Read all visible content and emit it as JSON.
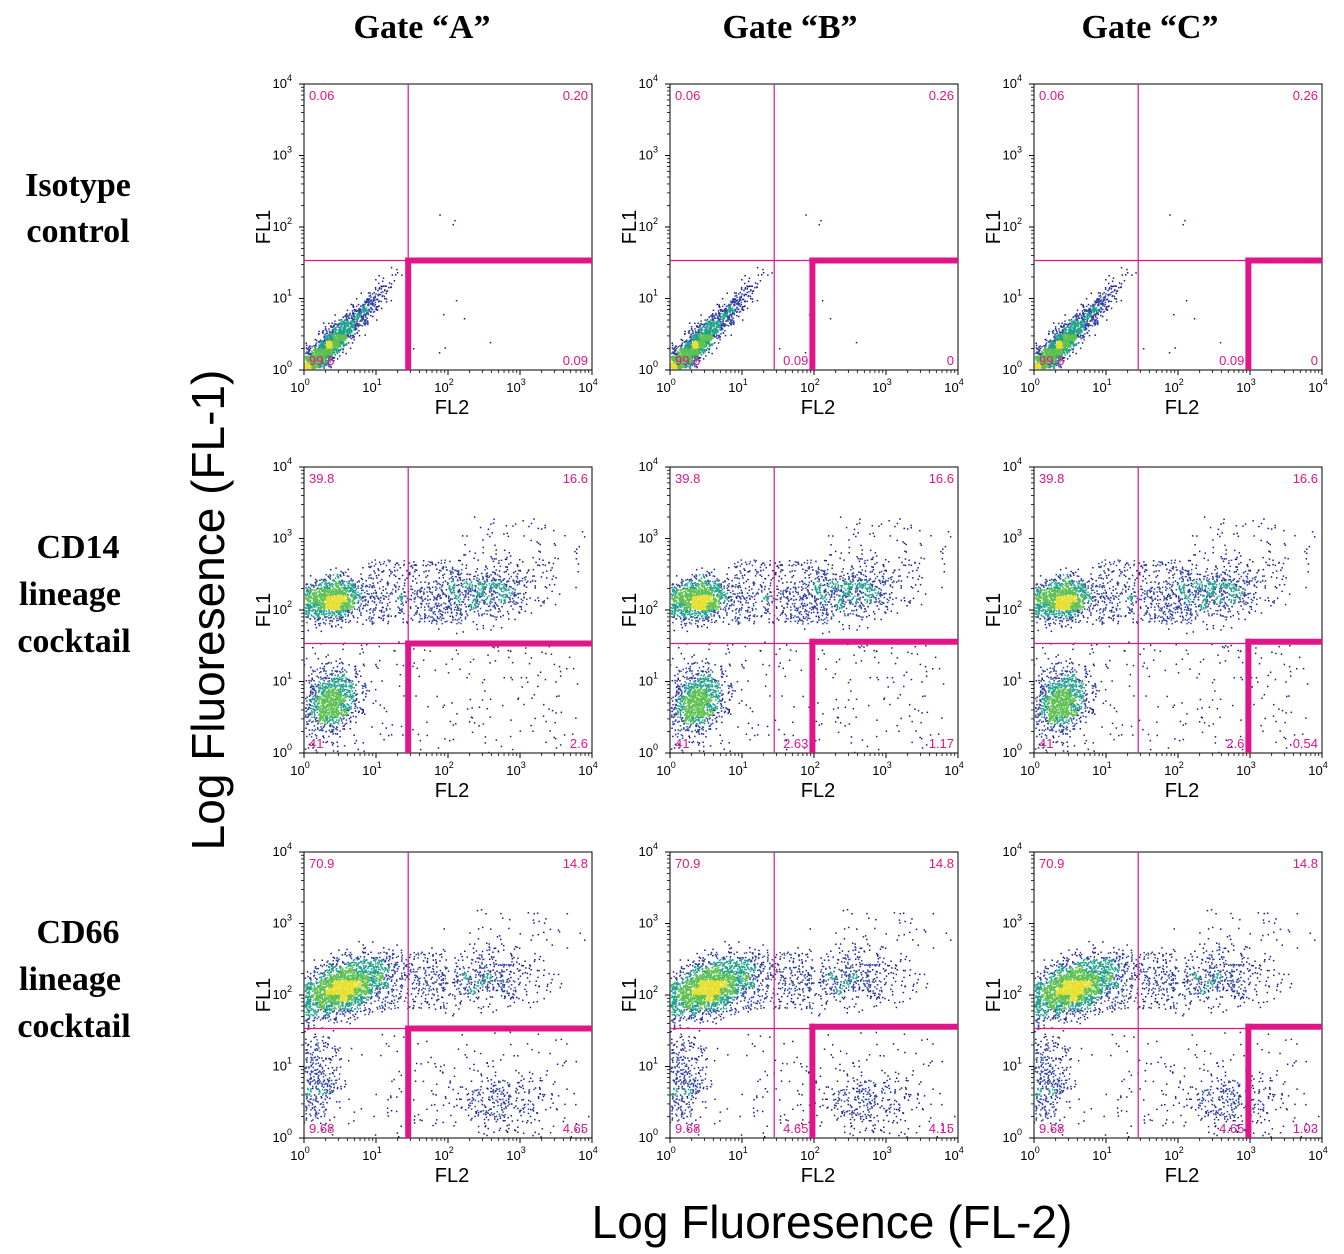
{
  "figure": {
    "x_axis_title": "Log Fluoresence (FL-2)",
    "y_axis_title": "Log Fluoresence (FL-1)",
    "column_headers": [
      "Gate “A”",
      "Gate “B”",
      "Gate “C”"
    ],
    "row_headers": [
      [
        "Isotype",
        "control"
      ],
      [
        "CD14",
        "lineage",
        "cocktail"
      ],
      [
        "CD66",
        "lineage",
        "cocktail"
      ]
    ],
    "panel_x_label": "FL2",
    "panel_y_label": "FL1",
    "tick_base": "10",
    "tick_exponents": [
      "0",
      "1",
      "2",
      "3",
      "4"
    ],
    "colors": {
      "gate": "#e0158a",
      "density_low": "#1a1a8c",
      "density_mid": "#1fa08a",
      "density_high": "#e8e030"
    }
  },
  "chart_data": [
    {
      "type": "scatter",
      "row": "Isotype control",
      "column": "Gate A",
      "xscale": "log",
      "yscale": "log",
      "xlim": [
        1,
        10000
      ],
      "ylim": [
        1,
        10000
      ],
      "quadrant_x": 28,
      "quadrant_y": 34,
      "gate_x": 28,
      "gate_y": 34,
      "quadrants": {
        "upper_left": "0.06",
        "upper_right": "0.20",
        "lower_left": "99.6",
        "lower_right": "0.09",
        "lower_middle": ""
      },
      "populations": "iso"
    },
    {
      "type": "scatter",
      "row": "Isotype control",
      "column": "Gate B",
      "xscale": "log",
      "yscale": "log",
      "xlim": [
        1,
        10000
      ],
      "ylim": [
        1,
        10000
      ],
      "quadrant_x": 28,
      "quadrant_y": 34,
      "gate_x": 95,
      "gate_y": 34,
      "quadrants": {
        "upper_left": "0.06",
        "upper_right": "0.26",
        "lower_left": "99.6",
        "lower_right": "0",
        "lower_middle": "0.09"
      },
      "populations": "iso"
    },
    {
      "type": "scatter",
      "row": "Isotype control",
      "column": "Gate C",
      "xscale": "log",
      "yscale": "log",
      "xlim": [
        1,
        10000
      ],
      "ylim": [
        1,
        10000
      ],
      "quadrant_x": 28,
      "quadrant_y": 34,
      "gate_x": 950,
      "gate_y": 34,
      "quadrants": {
        "upper_left": "0.06",
        "upper_right": "0.26",
        "lower_left": "99.6",
        "lower_right": "0",
        "lower_middle": "0.09"
      },
      "populations": "iso"
    },
    {
      "type": "scatter",
      "row": "CD14 lineage cocktail",
      "column": "Gate A",
      "xscale": "log",
      "yscale": "log",
      "xlim": [
        1,
        10000
      ],
      "ylim": [
        1,
        10000
      ],
      "quadrant_x": 28,
      "quadrant_y": 34,
      "gate_x": 28,
      "gate_y": 34,
      "quadrants": {
        "upper_left": "39.8",
        "upper_right": "16.6",
        "lower_left": "41",
        "lower_right": "2.6",
        "lower_middle": ""
      },
      "populations": "cd14"
    },
    {
      "type": "scatter",
      "row": "CD14 lineage cocktail",
      "column": "Gate B",
      "xscale": "log",
      "yscale": "log",
      "xlim": [
        1,
        10000
      ],
      "ylim": [
        1,
        10000
      ],
      "quadrant_x": 28,
      "quadrant_y": 34,
      "gate_x": 95,
      "gate_y": 36,
      "quadrants": {
        "upper_left": "39.8",
        "upper_right": "16.6",
        "lower_left": "41",
        "lower_right": "1.17",
        "lower_middle": "2.63"
      },
      "populations": "cd14"
    },
    {
      "type": "scatter",
      "row": "CD14 lineage cocktail",
      "column": "Gate C",
      "xscale": "log",
      "yscale": "log",
      "xlim": [
        1,
        10000
      ],
      "ylim": [
        1,
        10000
      ],
      "quadrant_x": 28,
      "quadrant_y": 34,
      "gate_x": 950,
      "gate_y": 36,
      "quadrants": {
        "upper_left": "39.8",
        "upper_right": "16.6",
        "lower_left": "41",
        "lower_right": "0.54",
        "lower_middle": "2.6"
      },
      "populations": "cd14"
    },
    {
      "type": "scatter",
      "row": "CD66 lineage cocktail",
      "column": "Gate A",
      "xscale": "log",
      "yscale": "log",
      "xlim": [
        1,
        10000
      ],
      "ylim": [
        1,
        10000
      ],
      "quadrant_x": 28,
      "quadrant_y": 34,
      "gate_x": 28,
      "gate_y": 34,
      "quadrants": {
        "upper_left": "70.9",
        "upper_right": "14.8",
        "lower_left": "9.68",
        "lower_right": "4.65",
        "lower_middle": ""
      },
      "populations": "cd66"
    },
    {
      "type": "scatter",
      "row": "CD66 lineage cocktail",
      "column": "Gate B",
      "xscale": "log",
      "yscale": "log",
      "xlim": [
        1,
        10000
      ],
      "ylim": [
        1,
        10000
      ],
      "quadrant_x": 28,
      "quadrant_y": 34,
      "gate_x": 95,
      "gate_y": 36,
      "quadrants": {
        "upper_left": "70.9",
        "upper_right": "14.8",
        "lower_left": "9.68",
        "lower_right": "4.15",
        "lower_middle": "4.65"
      },
      "populations": "cd66"
    },
    {
      "type": "scatter",
      "row": "CD66 lineage cocktail",
      "column": "Gate C",
      "xscale": "log",
      "yscale": "log",
      "xlim": [
        1,
        10000
      ],
      "ylim": [
        1,
        10000
      ],
      "quadrant_x": 28,
      "quadrant_y": 34,
      "gate_x": 950,
      "gate_y": 36,
      "quadrants": {
        "upper_left": "70.9",
        "upper_right": "14.8",
        "lower_left": "9.68",
        "lower_right": "1.03",
        "lower_middle": "4.65"
      },
      "populations": "cd66"
    }
  ]
}
